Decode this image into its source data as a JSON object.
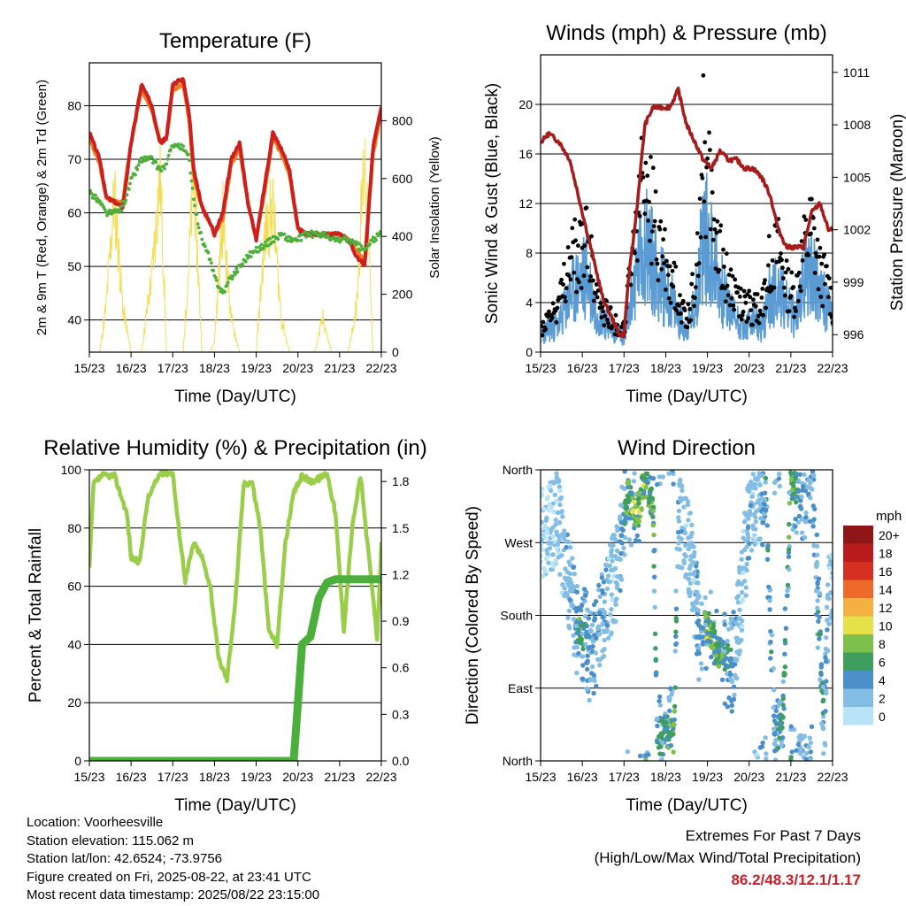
{
  "colors": {
    "temp_2m": "#cc1f1f",
    "temp_9m": "#f07a1e",
    "dewpoint": "#4fae3c",
    "solar": "#f3dd55",
    "wind": "#5a9bd3",
    "gust": "#000000",
    "pressure": "#a41c1c",
    "rh": "#9acd4a",
    "precip": "#4caf3c",
    "extremes": "#c8202a"
  },
  "x_ticks": [
    "15/23",
    "16/23",
    "17/23",
    "18/23",
    "19/23",
    "20/23",
    "21/23",
    "22/23"
  ],
  "info": {
    "location": "Location: Voorheesville",
    "elevation": "Station elevation: 115.062 m",
    "latlon": "Station lat/lon: 42.6524; -73.9756",
    "created": "Figure created on Fri, 2025-08-22, at 23:41 UTC",
    "latest": "Most recent data timestamp: 2025/08/22 23:15:00"
  },
  "extremes": {
    "title": "Extremes For Past 7 Days",
    "subtitle": "(High/Low/Max Wind/Total Precipitation)",
    "values": "86.2/48.3/12.1/1.17"
  },
  "chart_data": [
    {
      "type": "line",
      "title": "Temperature (F)",
      "xlabel": "Time (Day/UTC)",
      "ylabel": "2m & 9m T (Red, Orange) & 2m Td (Green)",
      "ylabel_right": "Solar Insolation (Yellow)",
      "ylim": [
        34,
        88
      ],
      "yticks": [
        40,
        50,
        60,
        70,
        80
      ],
      "ylim_right": [
        0,
        1000
      ],
      "yticks_right": [
        0,
        200,
        400,
        600,
        800
      ],
      "x": [
        0,
        0.25,
        0.4,
        0.6,
        0.8,
        1.0,
        1.25,
        1.5,
        1.7,
        1.85,
        2.0,
        2.25,
        2.4,
        2.5,
        2.7,
        2.9,
        3.0,
        3.2,
        3.4,
        3.6,
        3.8,
        4.0,
        4.2,
        4.4,
        4.6,
        4.8,
        5.0,
        5.2,
        5.4,
        5.6,
        5.8,
        6.0,
        6.2,
        6.4,
        6.6,
        6.8,
        7.0
      ],
      "series": [
        {
          "values": [
            75,
            70,
            63,
            62,
            61,
            73,
            84,
            80,
            73,
            74,
            84,
            85,
            78,
            68,
            61,
            58,
            56,
            60,
            70,
            73,
            62,
            55,
            65,
            75,
            72,
            68,
            57,
            56,
            56,
            56,
            56,
            56,
            55,
            52,
            50,
            72,
            80
          ]
        },
        {
          "values": [
            74,
            69,
            63,
            62,
            62,
            73,
            83,
            79,
            73,
            74,
            83,
            84,
            77,
            67,
            61,
            58,
            56,
            59,
            69,
            72,
            62,
            55,
            64,
            74,
            71,
            67,
            57,
            56,
            56,
            56,
            56,
            56,
            55,
            53,
            51,
            71,
            79
          ]
        },
        {
          "values": [
            64,
            62,
            60,
            60,
            61,
            66,
            70,
            70,
            68,
            69,
            73,
            72,
            70,
            62,
            55,
            51,
            48,
            45,
            48,
            50,
            52,
            53,
            54,
            55,
            56,
            55,
            55,
            56,
            56,
            56,
            55,
            55,
            55,
            54,
            53,
            55,
            56
          ]
        },
        {
          "values": [
            0,
            0,
            200,
            700,
            200,
            0,
            0,
            350,
            800,
            0,
            0,
            0,
            450,
            800,
            0,
            0,
            50,
            600,
            150,
            0,
            0,
            0,
            500,
            650,
            150,
            0,
            0,
            0,
            0,
            150,
            0,
            0,
            0,
            200,
            900,
            0,
            0
          ]
        }
      ]
    },
    {
      "type": "scatter",
      "title": "Winds (mph) & Pressure (mb)",
      "xlabel": "Time (Day/UTC)",
      "ylabel": "Sonic Wind & Gust (Blue, Black)",
      "ylabel_right": "Station Pressure (Maroon)",
      "ylim": [
        0,
        24
      ],
      "yticks": [
        0,
        4,
        8,
        12,
        16,
        20
      ],
      "ylim_right": [
        995,
        1012
      ],
      "yticks_right": [
        996,
        999,
        1002,
        1005,
        1008,
        1011
      ],
      "x": [
        0,
        0.2,
        0.45,
        0.7,
        0.9,
        1.1,
        1.3,
        1.5,
        1.7,
        1.9,
        2.0,
        2.1,
        2.3,
        2.5,
        2.7,
        2.9,
        3.1,
        3.3,
        3.5,
        3.7,
        3.9,
        4.1,
        4.3,
        4.5,
        4.7,
        4.9,
        5.1,
        5.3,
        5.5,
        5.7,
        5.9,
        6.1,
        6.3,
        6.5,
        6.7,
        6.9,
        7.0
      ],
      "series": [
        {
          "values": [
            1.5,
            2,
            2.5,
            5,
            6,
            7,
            4,
            3,
            2,
            1.5,
            1.5,
            3,
            7,
            10,
            8,
            6,
            5,
            3,
            2,
            4,
            11,
            9,
            6,
            4,
            3,
            2,
            3,
            2,
            5,
            6,
            4,
            3,
            6,
            8,
            5,
            4,
            3
          ]
        },
        {
          "values": [
            2,
            3,
            4,
            8,
            9,
            10,
            6,
            4,
            3,
            2,
            2,
            5,
            12,
            16,
            12,
            9,
            7,
            5,
            3,
            6,
            18,
            14,
            9,
            6,
            5,
            4,
            4,
            4,
            8,
            9,
            6,
            5,
            9,
            11,
            7,
            6,
            4
          ]
        },
        {
          "values": [
            1007,
            1007.5,
            1007,
            1006,
            1004,
            1002,
            1000,
            998,
            997,
            996,
            996,
            999,
            1003,
            1008,
            1009,
            1009,
            1009,
            1010,
            1008,
            1007,
            1006,
            1005.5,
            1006.5,
            1006,
            1006,
            1005.5,
            1005.5,
            1005,
            1004,
            1002,
            1001,
            1001,
            1001,
            1003,
            1003.5,
            1002,
            1002
          ]
        }
      ]
    },
    {
      "type": "line",
      "title": "Relative Humidity (%) & Precipitation (in)",
      "xlabel": "Time (Day/UTC)",
      "ylabel": "Percent & Total Rainfall",
      "ylim": [
        0,
        100
      ],
      "yticks": [
        0,
        20,
        40,
        60,
        80,
        100
      ],
      "ylim_right": [
        0,
        1.875
      ],
      "yticks_right": [
        "0.0",
        "0.3",
        "0.6",
        "0.9",
        "1.2",
        "1.5",
        "1.8"
      ],
      "x": [
        0,
        0.1,
        0.3,
        0.6,
        0.9,
        1.0,
        1.2,
        1.4,
        1.7,
        2.0,
        2.1,
        2.3,
        2.5,
        2.7,
        2.9,
        3.1,
        3.3,
        3.5,
        3.7,
        3.9,
        4.1,
        4.3,
        4.5,
        4.7,
        4.9,
        5.1,
        5.3,
        5.5,
        5.7,
        5.9,
        6.1,
        6.3,
        6.5,
        6.7,
        6.9,
        7.0
      ],
      "series": [
        {
          "values": [
            66,
            95,
            98,
            98,
            85,
            70,
            68,
            90,
            99,
            99,
            85,
            62,
            75,
            70,
            60,
            35,
            28,
            55,
            95,
            96,
            80,
            45,
            40,
            75,
            92,
            98,
            96,
            97,
            99,
            85,
            45,
            80,
            98,
            70,
            42,
            75
          ]
        },
        {
          "values": [
            0,
            0,
            0,
            0,
            0,
            0,
            0,
            0,
            0,
            0,
            0,
            0,
            0,
            0,
            0,
            0,
            0,
            0,
            0,
            0,
            0,
            0,
            0,
            0,
            0,
            0.75,
            0.8,
            1.05,
            1.15,
            1.17,
            1.17,
            1.17,
            1.17,
            1.17,
            1.17,
            1.17
          ]
        }
      ]
    },
    {
      "type": "scatter",
      "title": "Wind Direction",
      "xlabel": "Time (Day/UTC)",
      "ylabel": "Direction (Colored By Speed)",
      "yticks": [
        "North",
        "East",
        "South",
        "West",
        "North"
      ],
      "ylim": [
        0,
        360
      ],
      "colorbar_label": "mph",
      "colorbar_levels": [
        "0",
        "2",
        "4",
        "6",
        "8",
        "10",
        "12",
        "14",
        "16",
        "18",
        "20+"
      ],
      "colorbar_colors": [
        "#b9e3f7",
        "#84bde3",
        "#4a8fc8",
        "#3e9e5e",
        "#7ec04c",
        "#e5e14a",
        "#f5b043",
        "#ef6a2a",
        "#d63022",
        "#b91c1c",
        "#8e1616"
      ],
      "x": [
        0.1,
        0.4,
        0.8,
        0.9,
        1.1,
        1.2,
        1.6,
        1.8,
        2.1,
        2.3,
        2.5,
        2.7,
        2.8,
        3.0,
        3.2,
        3.3,
        3.6,
        3.8,
        4.0,
        4.2,
        4.4,
        4.6,
        4.8,
        5.0,
        5.2,
        5.4,
        5.6,
        5.8,
        6.0,
        6.3,
        6.5,
        6.8,
        6.9
      ],
      "series": [
        {
          "values": [
            280,
            300,
            180,
            160,
            150,
            120,
            200,
            230,
            330,
            300,
            350,
            310,
            20,
            40,
            30,
            300,
            260,
            150,
            170,
            140,
            130,
            120,
            200,
            300,
            320,
            330,
            30,
            40,
            345,
            330,
            350,
            40,
            200
          ]
        },
        {
          "values": [
            1,
            2,
            3,
            6,
            5,
            4,
            3,
            2,
            7,
            9,
            8,
            7,
            5,
            6,
            8,
            3,
            2,
            4,
            9,
            8,
            6,
            4,
            2,
            3,
            2,
            5,
            4,
            6,
            7,
            3,
            4,
            5,
            2
          ]
        }
      ]
    }
  ]
}
